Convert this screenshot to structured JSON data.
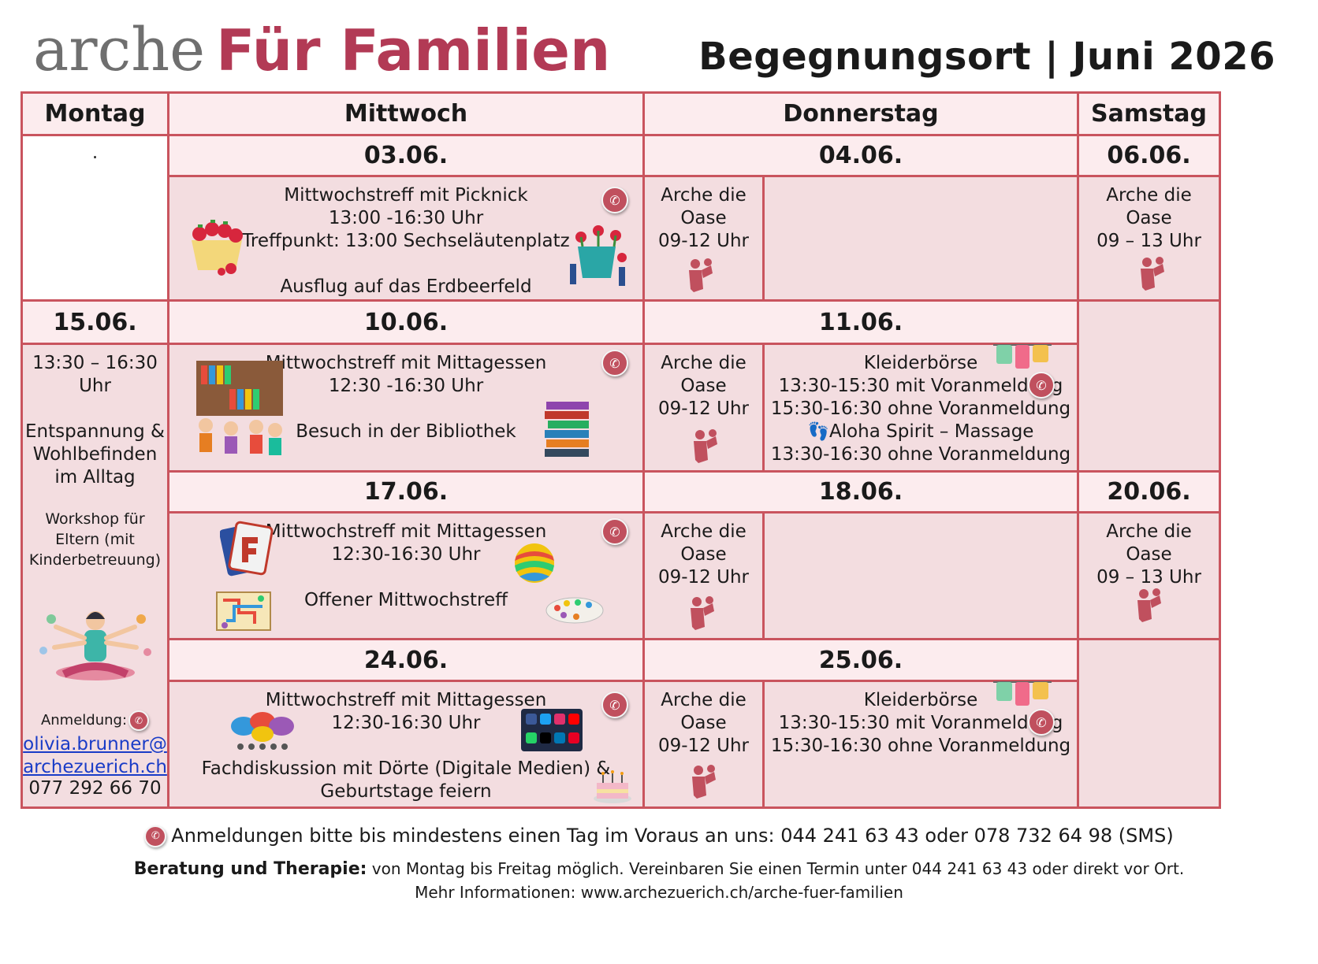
{
  "header": {
    "brand_a": "arche",
    "brand_b": "Für Familien",
    "title": "Begegnungsort | Juni 2026"
  },
  "days": {
    "mon": "Montag",
    "wed": "Mittwoch",
    "thu": "Donnerstag",
    "sat": "Samstag"
  },
  "dates": {
    "d0306": "03.06.",
    "d0406": "04.06.",
    "d0606": "06.06.",
    "d1506": "15.06.",
    "d1006": "10.06.",
    "d1106": "11.06.",
    "d1706": "17.06.",
    "d1806": "18.06.",
    "d2006": "20.06.",
    "d2406": "24.06.",
    "d2506": "25.06."
  },
  "mon_dot": ".",
  "oase": {
    "l1": "Arche die",
    "l2": "Oase",
    "thu_time": "09-12 Uhr",
    "sat_time": "09 – 13 Uhr"
  },
  "w1": {
    "title_a": "Mittwochstreff",
    "title_b": " mit ",
    "title_c": "Picknick",
    "time": "13:00 -16:30 Uhr",
    "meet": "Treffpunkt: 13:00 Sechseläutenplatz",
    "sub": "Ausflug auf das Erdbeerfeld"
  },
  "w2": {
    "title_a": "Mittwochstreff",
    "title_b": " mit ",
    "title_c": "Mittagessen",
    "time": "12:30 -16:30 Uhr",
    "sub": "Besuch in der Bibliothek"
  },
  "w3": {
    "title_a": "Mittwochstreff",
    "title_b": " mit ",
    "title_c": "Mittagessen",
    "time": "12:30-16:30 Uhr",
    "sub": "Offener Mittwochstreff"
  },
  "w4": {
    "title_a": "Mittwochstreff",
    "title_b": " mit ",
    "title_c": "Mittagessen",
    "time": "12:30-16:30 Uhr",
    "sub1": "Fachdiskussion mit Dörte (Digitale Medien) &",
    "sub2": "Geburtstage feiern"
  },
  "k1": {
    "title": "Kleiderbörse",
    "l1": "13:30-15:30 mit Voranmeldung",
    "l2": "15:30-16:30 ohne Voranmeldung",
    "l3": "Aloha Spirit – Massage",
    "l4": "13:30-16:30 ohne Voranmeldung"
  },
  "k2": {
    "title": "Kleiderbörse",
    "l1": "13:30-15:30 mit Voranmeldung",
    "l2": "15:30-16:30 ohne Voranmeldung"
  },
  "mon_ws": {
    "time1": "13:30 – 16:30",
    "time2": "Uhr",
    "t1": "Entspannung &",
    "t2": "Wohlbefinden",
    "t3": "im Alltag",
    "s1": "Workshop für",
    "s2": "Eltern (mit",
    "s3": "Kinderbetreuung)",
    "reg": "Anmeldung:",
    "email1": "olivia.brunner@",
    "email2": "archezuerich.ch",
    "phone": "077 292 66 70"
  },
  "footer": {
    "line1": "Anmeldungen bitte bis mindestens einen Tag im Voraus an uns: 044 241 63 43 oder 078 732 64 98 (SMS)",
    "line2_bold": "Beratung und Therapie:",
    "line2": " von Montag bis Freitag möglich. Vereinbaren Sie einen Termin unter 044 241 63 43 oder direkt vor Ort.",
    "line3": "Mehr Informationen: www.archezuerich.ch/arche-fuer-familien"
  },
  "icons": {
    "phone": "phone-icon",
    "person": "mother-child-icon",
    "colors": {
      "accent": "#b23a55",
      "border": "#c9545e",
      "pink": "#f3dde0",
      "light": "#fcecee"
    }
  }
}
